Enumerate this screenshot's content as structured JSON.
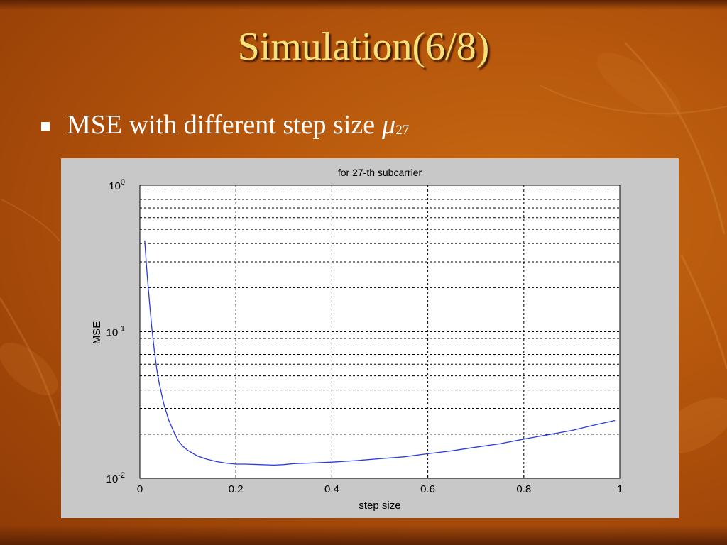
{
  "slide": {
    "title": "Simulation(6/8)",
    "bullet": "MSE with different step size",
    "symbol": "μ",
    "symbol_subscript": "27"
  },
  "colors": {
    "title": "#f6e27a",
    "bullet_text": "#ffffff",
    "background": "#b3540c",
    "chart_panel": "#c8c8c8",
    "line": "#2b3be0"
  },
  "chart_data": {
    "type": "line",
    "title": "for 27-th subcarrier",
    "xlabel": "step size",
    "ylabel": "MSE",
    "xlim": [
      0,
      1
    ],
    "ylim": [
      0.01,
      1
    ],
    "yscale": "log",
    "grid": true,
    "xticks": [
      "0",
      "0.2",
      "0.4",
      "0.6",
      "0.8",
      "1"
    ],
    "yticks": [
      {
        "base": "10",
        "exp": "0"
      },
      {
        "base": "10",
        "exp": "-1"
      },
      {
        "base": "10",
        "exp": "-2"
      }
    ],
    "series": [
      {
        "x": [
          0.01,
          0.015,
          0.02,
          0.025,
          0.03,
          0.035,
          0.04,
          0.05,
          0.06,
          0.07,
          0.08,
          0.09,
          0.1,
          0.12,
          0.14,
          0.16,
          0.18,
          0.2,
          0.22,
          0.25,
          0.28,
          0.3,
          0.32,
          0.35,
          0.4,
          0.45,
          0.5,
          0.55,
          0.6,
          0.65,
          0.7,
          0.75,
          0.8,
          0.85,
          0.9,
          0.95,
          0.99
        ],
        "y": [
          0.42,
          0.25,
          0.16,
          0.105,
          0.075,
          0.056,
          0.045,
          0.032,
          0.025,
          0.021,
          0.018,
          0.0165,
          0.0155,
          0.0142,
          0.0135,
          0.013,
          0.0127,
          0.0125,
          0.0125,
          0.0124,
          0.0123,
          0.0124,
          0.0126,
          0.0127,
          0.0129,
          0.0132,
          0.0136,
          0.014,
          0.0147,
          0.0154,
          0.0163,
          0.0172,
          0.0185,
          0.0198,
          0.0212,
          0.0232,
          0.0248
        ]
      }
    ]
  }
}
